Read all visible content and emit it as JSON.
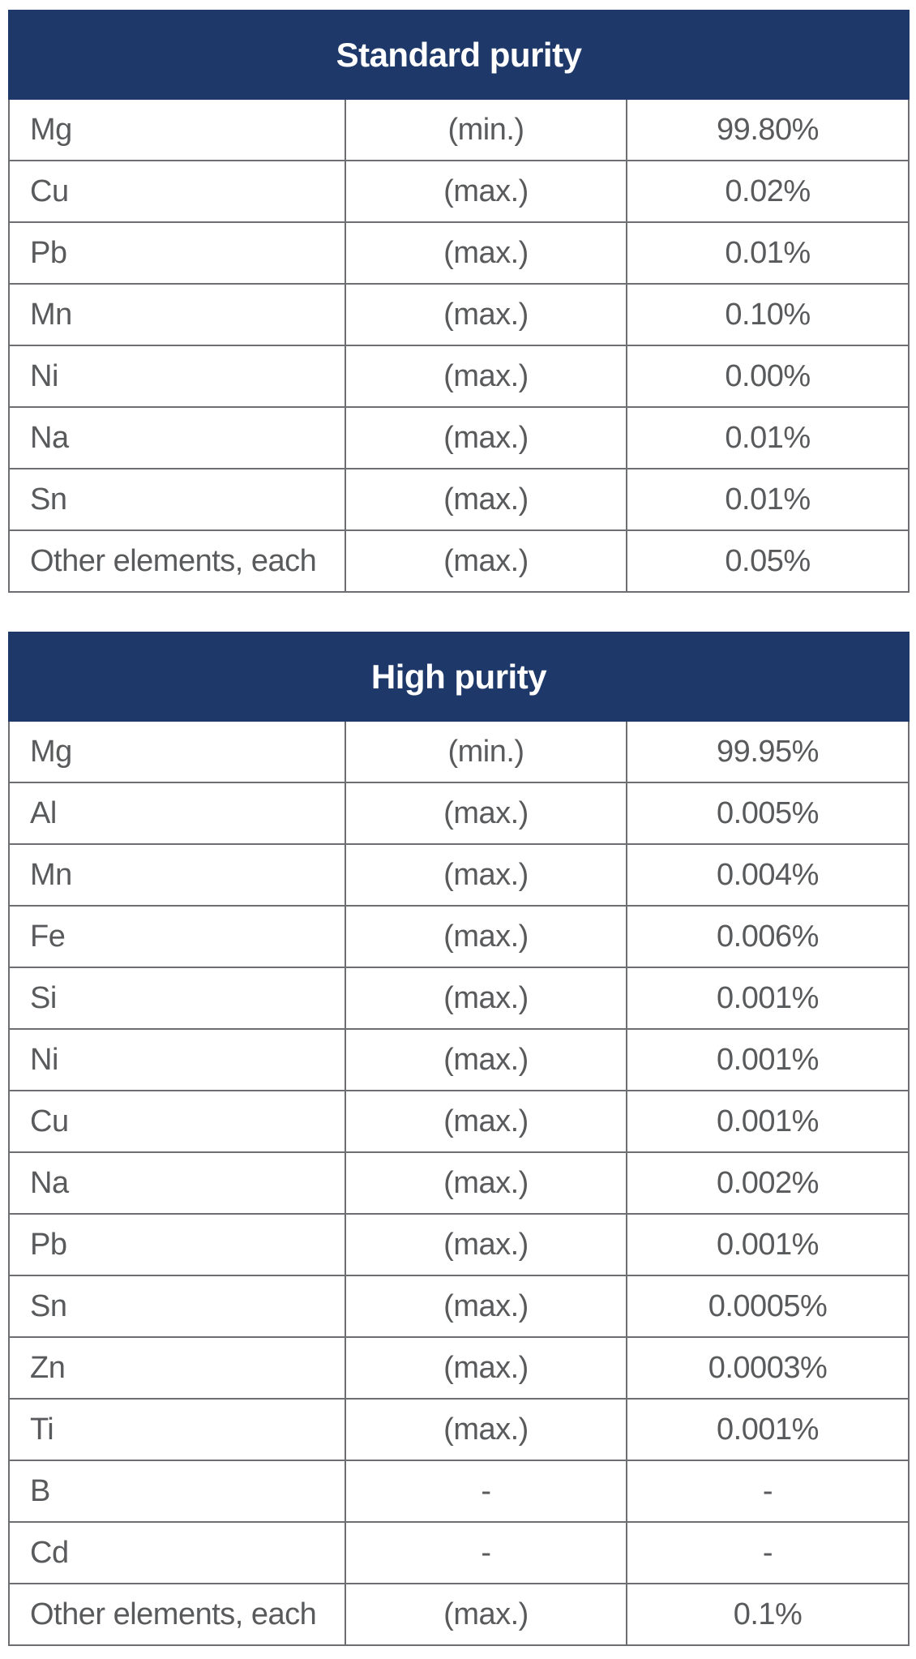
{
  "colors": {
    "header_bg": "#1d3869",
    "header_text": "#ffffff",
    "border": "#6d6e71",
    "cell_text": "#595a5c",
    "row_bg": "#ffffff",
    "page_bg": "#ffffff"
  },
  "chart_data": [
    {
      "type": "table",
      "title": "Standard purity",
      "columns": [
        "element",
        "limit",
        "value"
      ],
      "rows": [
        {
          "element": "Mg",
          "limit": "(min.)",
          "value": "99.80%"
        },
        {
          "element": "Cu",
          "limit": "(max.)",
          "value": "0.02%"
        },
        {
          "element": "Pb",
          "limit": "(max.)",
          "value": "0.01%"
        },
        {
          "element": "Mn",
          "limit": "(max.)",
          "value": "0.10%"
        },
        {
          "element": "Ni",
          "limit": "(max.)",
          "value": "0.00%"
        },
        {
          "element": "Na",
          "limit": "(max.)",
          "value": "0.01%"
        },
        {
          "element": "Sn",
          "limit": "(max.)",
          "value": "0.01%"
        },
        {
          "element": "Other elements, each",
          "limit": "(max.)",
          "value": "0.05%"
        }
      ]
    },
    {
      "type": "table",
      "title": "High purity",
      "columns": [
        "element",
        "limit",
        "value"
      ],
      "rows": [
        {
          "element": "Mg",
          "limit": "(min.)",
          "value": "99.95%"
        },
        {
          "element": "Al",
          "limit": "(max.)",
          "value": "0.005%"
        },
        {
          "element": "Mn",
          "limit": "(max.)",
          "value": "0.004%"
        },
        {
          "element": "Fe",
          "limit": "(max.)",
          "value": "0.006%"
        },
        {
          "element": "Si",
          "limit": "(max.)",
          "value": "0.001%"
        },
        {
          "element": "Ni",
          "limit": "(max.)",
          "value": "0.001%"
        },
        {
          "element": "Cu",
          "limit": "(max.)",
          "value": "0.001%"
        },
        {
          "element": "Na",
          "limit": "(max.)",
          "value": "0.002%"
        },
        {
          "element": "Pb",
          "limit": "(max.)",
          "value": "0.001%"
        },
        {
          "element": "Sn",
          "limit": "(max.)",
          "value": "0.0005%"
        },
        {
          "element": "Zn",
          "limit": "(max.)",
          "value": "0.0003%"
        },
        {
          "element": "Ti",
          "limit": "(max.)",
          "value": "0.001%"
        },
        {
          "element": "B",
          "limit": "-",
          "value": "-"
        },
        {
          "element": "Cd",
          "limit": "-",
          "value": "-"
        },
        {
          "element": "Other elements, each",
          "limit": "(max.)",
          "value": "0.1%"
        }
      ]
    }
  ]
}
